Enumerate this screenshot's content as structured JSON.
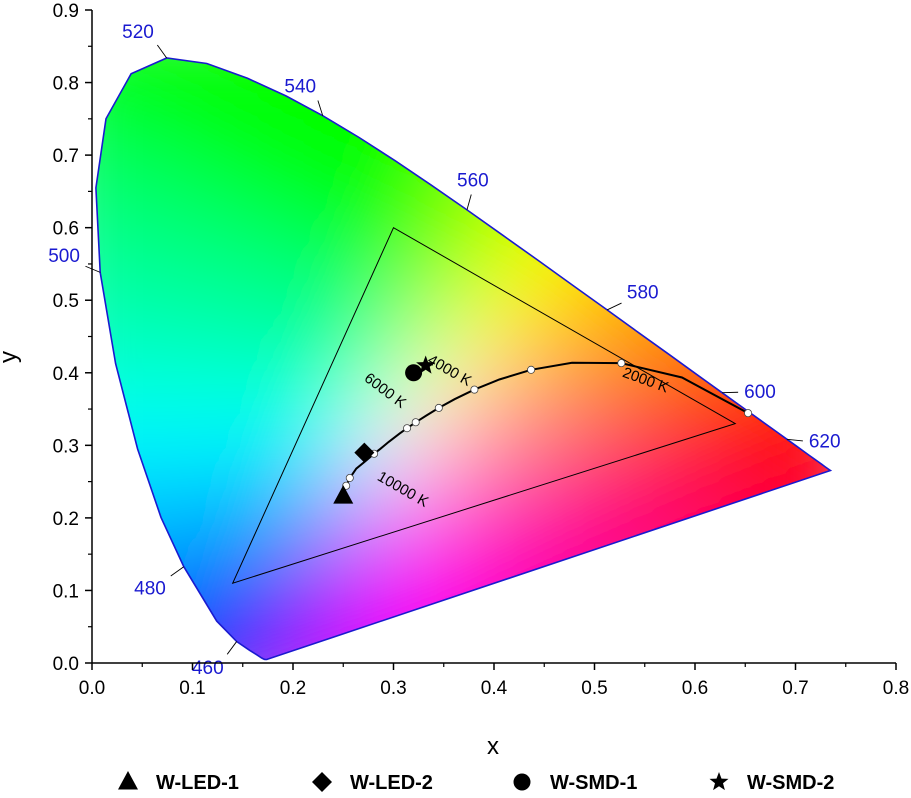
{
  "chart_data": {
    "type": "scatter",
    "title": "",
    "xlabel": "x",
    "ylabel": "y",
    "xlim": [
      0.0,
      0.8
    ],
    "ylim": [
      0.0,
      0.9
    ],
    "x_ticks": [
      "0.0",
      "0.1",
      "0.2",
      "0.3",
      "0.4",
      "0.5",
      "0.6",
      "0.7",
      "0.8"
    ],
    "y_ticks": [
      "0.0",
      "0.1",
      "0.2",
      "0.3",
      "0.4",
      "0.5",
      "0.6",
      "0.7",
      "0.8",
      "0.9"
    ],
    "grid": false,
    "legend_position": "bottom",
    "spectral_locus": [
      [
        0.1741,
        0.005
      ],
      [
        0.1733,
        0.0048
      ],
      [
        0.1726,
        0.0048
      ],
      [
        0.1714,
        0.0051
      ],
      [
        0.1689,
        0.0069
      ],
      [
        0.1644,
        0.0109
      ],
      [
        0.1566,
        0.0177
      ],
      [
        0.144,
        0.0297
      ],
      [
        0.1241,
        0.0578
      ],
      [
        0.0913,
        0.1327
      ],
      [
        0.0687,
        0.2007
      ],
      [
        0.0454,
        0.295
      ],
      [
        0.0235,
        0.4127
      ],
      [
        0.0082,
        0.5384
      ],
      [
        0.0039,
        0.6548
      ],
      [
        0.0139,
        0.7502
      ],
      [
        0.0389,
        0.812
      ],
      [
        0.0743,
        0.8338
      ],
      [
        0.1142,
        0.8262
      ],
      [
        0.1547,
        0.8059
      ],
      [
        0.1929,
        0.7816
      ],
      [
        0.2296,
        0.7543
      ],
      [
        0.2658,
        0.7243
      ],
      [
        0.3016,
        0.6923
      ],
      [
        0.3373,
        0.6589
      ],
      [
        0.3731,
        0.6245
      ],
      [
        0.4087,
        0.5896
      ],
      [
        0.4441,
        0.5547
      ],
      [
        0.4788,
        0.5202
      ],
      [
        0.5125,
        0.4866
      ],
      [
        0.5448,
        0.4544
      ],
      [
        0.5752,
        0.4242
      ],
      [
        0.6029,
        0.3965
      ],
      [
        0.627,
        0.3725
      ],
      [
        0.6482,
        0.3514
      ],
      [
        0.6658,
        0.334
      ],
      [
        0.6801,
        0.3197
      ],
      [
        0.6915,
        0.3083
      ],
      [
        0.7006,
        0.2993
      ],
      [
        0.7079,
        0.292
      ],
      [
        0.714,
        0.2859
      ],
      [
        0.719,
        0.2809
      ],
      [
        0.723,
        0.277
      ],
      [
        0.726,
        0.274
      ],
      [
        0.7283,
        0.2717
      ],
      [
        0.73,
        0.27
      ],
      [
        0.7347,
        0.2653
      ]
    ],
    "wavelength_labels": [
      {
        "label": "460",
        "at": [
          0.144,
          0.0297
        ]
      },
      {
        "label": "480",
        "at": [
          0.0913,
          0.1327
        ]
      },
      {
        "label": "500",
        "at": [
          0.0082,
          0.5384
        ]
      },
      {
        "label": "520",
        "at": [
          0.0743,
          0.8338
        ]
      },
      {
        "label": "540",
        "at": [
          0.2296,
          0.7543
        ]
      },
      {
        "label": "560",
        "at": [
          0.3731,
          0.6245
        ]
      },
      {
        "label": "580",
        "at": [
          0.5125,
          0.4866
        ]
      },
      {
        "label": "600",
        "at": [
          0.627,
          0.3725
        ]
      },
      {
        "label": "620",
        "at": [
          0.6915,
          0.3083
        ]
      }
    ],
    "gamut_triangle": [
      [
        0.64,
        0.33
      ],
      [
        0.3,
        0.6
      ],
      [
        0.14,
        0.11
      ]
    ],
    "planckian_locus": [
      [
        0.6528,
        0.3444
      ],
      [
        0.5871,
        0.3935
      ],
      [
        0.5267,
        0.4133
      ],
      [
        0.4776,
        0.4137
      ],
      [
        0.4369,
        0.4041
      ],
      [
        0.4053,
        0.3907
      ],
      [
        0.3805,
        0.3768
      ],
      [
        0.3608,
        0.3636
      ],
      [
        0.3451,
        0.3516
      ],
      [
        0.3325,
        0.341
      ],
      [
        0.3221,
        0.3318
      ],
      [
        0.3135,
        0.3236
      ],
      [
        0.3064,
        0.3166
      ],
      [
        0.2952,
        0.3048
      ],
      [
        0.287,
        0.2952
      ],
      [
        0.2807,
        0.2884
      ],
      [
        0.2719,
        0.2781
      ],
      [
        0.263,
        0.268
      ],
      [
        0.2565,
        0.255
      ],
      [
        0.2529,
        0.2443
      ]
    ],
    "planckian_markers": [
      [
        0.6528,
        0.3444
      ],
      [
        0.5267,
        0.4133
      ],
      [
        0.4369,
        0.4041
      ],
      [
        0.3805,
        0.3768
      ],
      [
        0.3451,
        0.3516
      ],
      [
        0.3221,
        0.3318
      ],
      [
        0.3135,
        0.3236
      ],
      [
        0.2807,
        0.2884
      ],
      [
        0.2565,
        0.255
      ],
      [
        0.2529,
        0.2443
      ]
    ],
    "cct_labels": [
      {
        "label": "2000 K",
        "at": [
          0.527,
          0.395
        ],
        "rotate": 20
      },
      {
        "label": "4000 K",
        "at": [
          0.333,
          0.414
        ],
        "rotate": 30
      },
      {
        "label": "6000 K",
        "at": [
          0.27,
          0.39
        ],
        "rotate": 37
      },
      {
        "label": "10000 K",
        "at": [
          0.283,
          0.253
        ],
        "rotate": 30
      }
    ],
    "series": [
      {
        "name": "W-LED-1",
        "marker": "triangle",
        "x": [
          0.25
        ],
        "y": [
          0.23
        ]
      },
      {
        "name": "W-LED-2",
        "marker": "diamond",
        "x": [
          0.271
        ],
        "y": [
          0.29
        ]
      },
      {
        "name": "W-SMD-1",
        "marker": "circle",
        "x": [
          0.32
        ],
        "y": [
          0.4
        ]
      },
      {
        "name": "W-SMD-2",
        "marker": "star",
        "x": [
          0.332
        ],
        "y": [
          0.41
        ]
      }
    ],
    "colors": {
      "locus_stroke": "#1a1ad0",
      "wavelength_label": "#1a1ad0",
      "triangle_stroke": "#000000",
      "planckian_stroke": "#000000",
      "marker_fill": "#000000"
    }
  }
}
